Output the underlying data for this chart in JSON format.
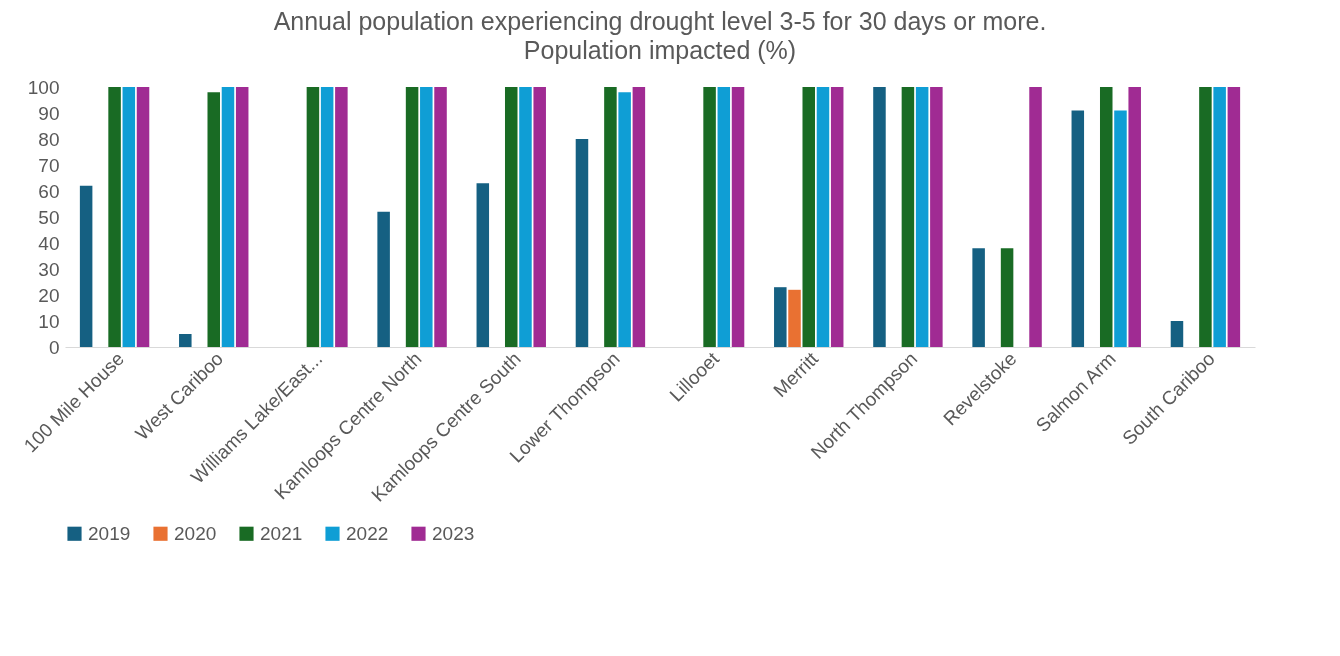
{
  "chart_data": {
    "type": "bar",
    "title": "Annual population experiencing drought level 3-5 for 30 days or more.",
    "subtitle": "Population impacted (%)",
    "categories": [
      "100 Mile House",
      "West Cariboo",
      "Williams Lake/East...",
      "Kamloops Centre North",
      "Kamloops Centre South",
      "Lower Thompson",
      "Lillooet",
      "Merritt",
      "North Thompson",
      "Revelstoke",
      "Salmon Arm",
      "South Cariboo"
    ],
    "series": [
      {
        "name": "2019",
        "color": "#156082",
        "values": [
          62,
          5,
          0,
          52,
          63,
          80,
          0,
          23,
          100,
          38,
          91,
          10
        ]
      },
      {
        "name": "2020",
        "color": "#e97132",
        "values": [
          0,
          0,
          0,
          0,
          0,
          0,
          0,
          22,
          0,
          0,
          0,
          0
        ]
      },
      {
        "name": "2021",
        "color": "#196b24",
        "values": [
          100,
          98,
          100,
          100,
          100,
          100,
          100,
          100,
          100,
          38,
          100,
          100
        ]
      },
      {
        "name": "2022",
        "color": "#0f9ed5",
        "values": [
          100,
          100,
          100,
          100,
          100,
          98,
          100,
          100,
          100,
          0,
          91,
          100
        ]
      },
      {
        "name": "2023",
        "color": "#a02b93",
        "values": [
          100,
          100,
          100,
          100,
          100,
          100,
          100,
          100,
          100,
          100,
          100,
          100
        ]
      }
    ],
    "ylim": [
      0,
      100
    ],
    "yticks": [
      0,
      10,
      20,
      30,
      40,
      50,
      60,
      70,
      80,
      90,
      100
    ],
    "grid": false,
    "legend": "bottom"
  }
}
